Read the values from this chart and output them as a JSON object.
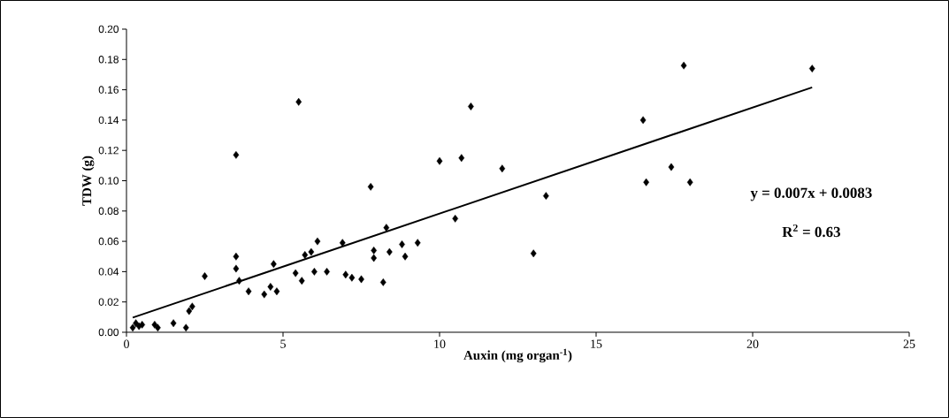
{
  "chart_data": {
    "type": "scatter",
    "xlabel": "Auxin (mg organ$^{-1}$)",
    "ylabel": "TDW (g)",
    "xlim": [
      0,
      25
    ],
    "ylim": [
      0,
      0.2
    ],
    "xticks": [
      0,
      5,
      10,
      15,
      20,
      25
    ],
    "yticks": [
      {
        "value": 0,
        "label": "0.00"
      },
      {
        "value": 0.02,
        "label": "0.02"
      },
      {
        "value": 0.04,
        "label": "0.04"
      },
      {
        "value": 0.06,
        "label": "0.06"
      },
      {
        "value": 0.08,
        "label": "0.08"
      },
      {
        "value": 0.1,
        "label": "0.10"
      },
      {
        "value": 0.12,
        "label": "0.12"
      },
      {
        "value": 0.14,
        "label": "0.14"
      },
      {
        "value": 0.16,
        "label": "0.16"
      },
      {
        "value": 0.18,
        "label": "0.18"
      },
      {
        "value": 0.2,
        "label": "0.20"
      }
    ],
    "marker": "diamond",
    "series": [
      {
        "color": "#000000",
        "x": [
          0.2,
          0.3,
          0.4,
          0.5,
          0.9,
          1.0,
          1.5,
          1.9,
          2.0,
          2.1,
          2.5,
          3.5,
          3.5,
          3.5,
          3.6,
          3.9,
          4.4,
          4.6,
          4.7,
          4.8,
          5.4,
          5.5,
          5.6,
          5.7,
          5.9,
          6.0,
          6.1,
          6.4,
          6.9,
          7.0,
          7.2,
          7.5,
          7.8,
          7.9,
          7.9,
          8.2,
          8.3,
          8.4,
          8.8,
          8.9,
          9.3,
          10.0,
          10.5,
          10.7,
          11.0,
          12.0,
          13.0,
          13.4,
          16.5,
          16.6,
          17.4,
          17.8,
          18.0,
          21.9
        ],
        "values": [
          0.003,
          0.006,
          0.004,
          0.005,
          0.005,
          0.003,
          0.006,
          0.003,
          0.014,
          0.017,
          0.037,
          0.117,
          0.05,
          0.042,
          0.034,
          0.027,
          0.025,
          0.03,
          0.045,
          0.027,
          0.039,
          0.152,
          0.034,
          0.051,
          0.053,
          0.04,
          0.06,
          0.04,
          0.059,
          0.038,
          0.036,
          0.035,
          0.096,
          0.049,
          0.054,
          0.033,
          0.069,
          0.053,
          0.058,
          0.05,
          0.059,
          0.113,
          0.075,
          0.115,
          0.149,
          0.108,
          0.052,
          0.09,
          0.14,
          0.099,
          0.109,
          0.176,
          0.099,
          0.174
        ]
      },
      {
        "type": "line",
        "color": "#000000",
        "marker": "none",
        "x": [
          0.2,
          21.9
        ],
        "values": [
          0.0097,
          0.1616
        ]
      }
    ],
    "annotations": [
      "y = 0.007x + 0.0083",
      "R$^{2}$ = 0.63"
    ]
  }
}
